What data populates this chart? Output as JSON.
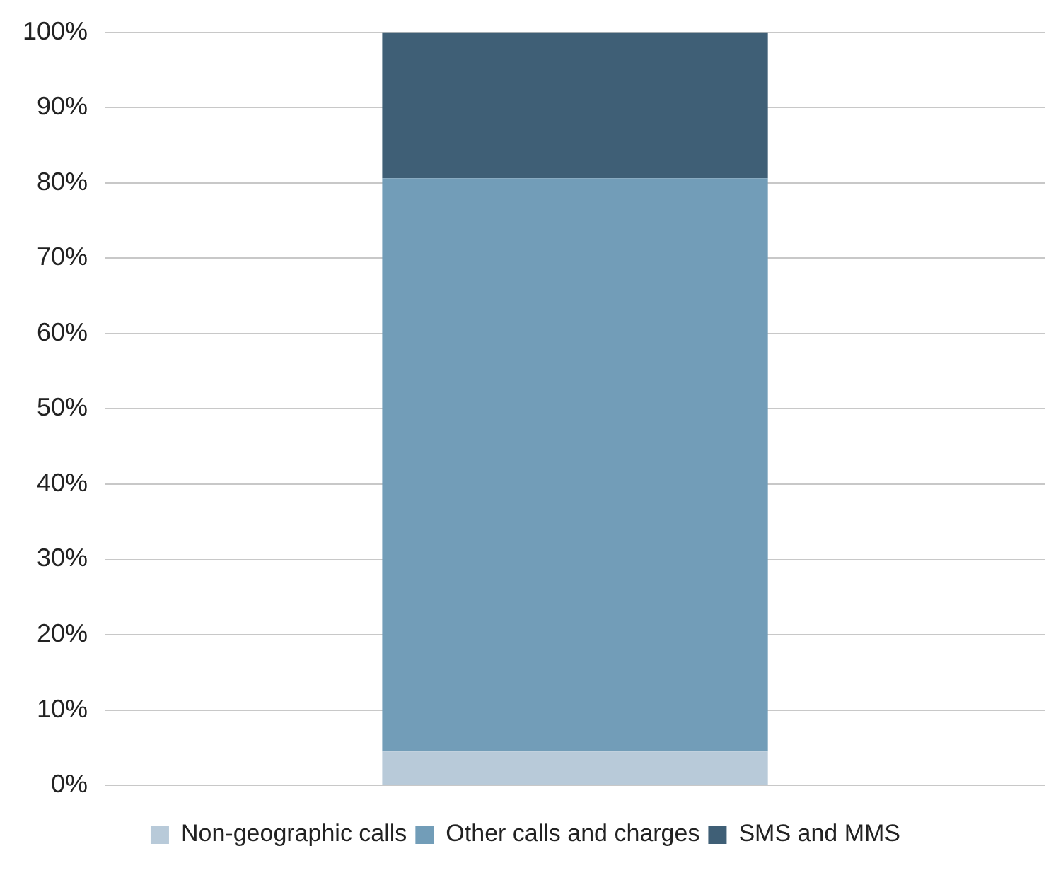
{
  "chart_data": {
    "type": "bar",
    "stacked": true,
    "categories": [
      null
    ],
    "series": [
      {
        "name": "Non-geographic calls",
        "color": "#b8cad9",
        "values": [
          4.5
        ]
      },
      {
        "name": "Other calls and charges",
        "color": "#729db8",
        "values": [
          76.1
        ]
      },
      {
        "name": "SMS and MMS",
        "color": "#3f5f76",
        "values": [
          19.4
        ]
      }
    ],
    "ylim": [
      0,
      100
    ],
    "yticks": [
      {
        "value": 0,
        "label": "0%"
      },
      {
        "value": 10,
        "label": "10%"
      },
      {
        "value": 20,
        "label": "20%"
      },
      {
        "value": 30,
        "label": "30%"
      },
      {
        "value": 40,
        "label": "40%"
      },
      {
        "value": 50,
        "label": "50%"
      },
      {
        "value": 60,
        "label": "60%"
      },
      {
        "value": 70,
        "label": "70%"
      },
      {
        "value": 80,
        "label": "80%"
      },
      {
        "value": 90,
        "label": "90%"
      },
      {
        "value": 100,
        "label": "100%"
      }
    ],
    "grid": "y",
    "legend": "bottom"
  }
}
